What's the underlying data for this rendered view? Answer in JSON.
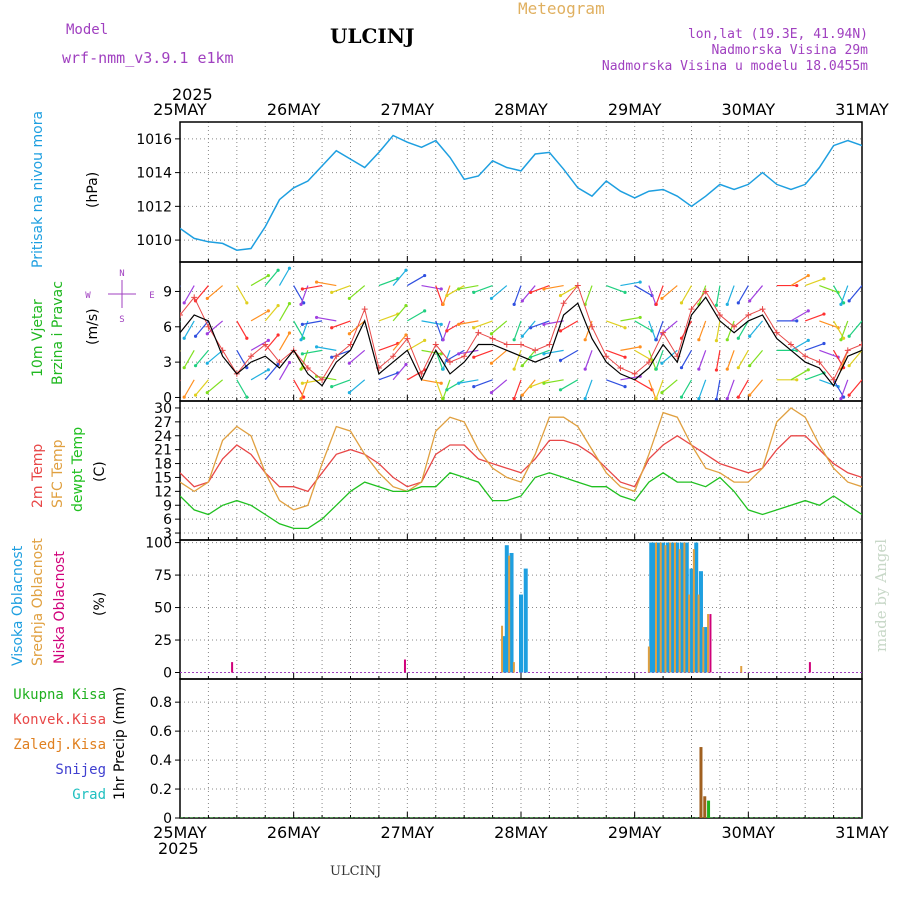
{
  "header": {
    "model_label": "Model",
    "model_name": "wrf-nmm_v3.9.1  e1km",
    "station": "ULCINJ",
    "meteogram": "Meteogram",
    "lonlat": "lon,lat (19.3E, 41.94N)",
    "elevation": "Nadmorska Visina 29m",
    "model_elevation": "Nadmorska Visina u modelu 18.0455m"
  },
  "footer": {
    "station": "ULCINJ",
    "credit": "made by Angel"
  },
  "time_axis": {
    "year": "2025",
    "labels": [
      "25MAY",
      "26MAY",
      "27MAY",
      "28MAY",
      "29MAY",
      "30MAY",
      "31MAY"
    ]
  },
  "colors": {
    "pressure": "#1e9fe0",
    "wind_label": "#20b820",
    "t2m": "#e84848",
    "tsfc": "#e0a040",
    "dewpt": "#20c020",
    "cloud_high": "#1e9fe0",
    "cloud_mid": "#e0a040",
    "cloud_low": "#d0007a",
    "precip_total": "#20b020",
    "precip_conv": "#e84848",
    "precip_strat": "#e08020",
    "snow": "#4040d0",
    "graupel": "#20c0c0",
    "direction_rose": "#a040c0"
  },
  "chart_data": [
    {
      "type": "line",
      "panel": "pressure",
      "ylabel_series": "Pritisak na nivou mora",
      "ylabel_unit": "(hPa)",
      "ylim": [
        1008.7,
        1017.0
      ],
      "yticks": [
        "1010",
        "1012",
        "1014",
        "1016"
      ],
      "x_hours": [
        0,
        3,
        6,
        9,
        12,
        15,
        18,
        21,
        24,
        27,
        30,
        33,
        36,
        39,
        42,
        45,
        48,
        51,
        54,
        57,
        60,
        63,
        66,
        69,
        72,
        75,
        78,
        81,
        84,
        87,
        90,
        93,
        96,
        99,
        102,
        105,
        108,
        111,
        114,
        117,
        120,
        123,
        126,
        129,
        132,
        135,
        138,
        141,
        144
      ],
      "values": [
        1010.7,
        1010.1,
        1009.9,
        1009.8,
        1009.4,
        1009.5,
        1010.8,
        1012.4,
        1013.1,
        1013.5,
        1014.4,
        1015.3,
        1014.8,
        1014.3,
        1015.2,
        1016.2,
        1015.8,
        1015.5,
        1015.9,
        1014.9,
        1013.6,
        1013.8,
        1014.7,
        1014.3,
        1014.1,
        1015.1,
        1015.2,
        1014.2,
        1013.1,
        1012.6,
        1013.5,
        1012.9,
        1012.5,
        1012.9,
        1013.0,
        1012.6,
        1012.0,
        1012.6,
        1013.3,
        1013.0,
        1013.3,
        1014.0,
        1013.3,
        1013.0,
        1013.3,
        1014.3,
        1015.6,
        1015.9,
        1015.6
      ],
      "grid": true
    },
    {
      "type": "line",
      "panel": "wind",
      "ylabel_series": "10m Vjetar / Brzina i Pravac",
      "ylabel_unit": "(m/s)",
      "ylim": [
        -0.3,
        11.5
      ],
      "yticks": [
        "0",
        "3",
        "6",
        "9"
      ],
      "compass": [
        "N",
        "E",
        "S",
        "W"
      ],
      "x_hours": [
        0,
        3,
        6,
        9,
        12,
        15,
        18,
        21,
        24,
        27,
        30,
        33,
        36,
        39,
        42,
        45,
        48,
        51,
        54,
        57,
        60,
        63,
        66,
        69,
        72,
        75,
        78,
        81,
        84,
        87,
        90,
        93,
        96,
        99,
        102,
        105,
        108,
        111,
        114,
        117,
        120,
        123,
        126,
        129,
        132,
        135,
        138,
        141,
        144
      ],
      "values": [
        5.5,
        7.0,
        6.5,
        3.5,
        2.0,
        3.0,
        3.5,
        2.5,
        4.0,
        2.0,
        1.0,
        3.0,
        4.0,
        6.5,
        2.0,
        3.0,
        4.0,
        1.5,
        4.0,
        2.0,
        3.0,
        4.5,
        4.5,
        4.0,
        3.5,
        3.0,
        3.5,
        7.0,
        8.0,
        5.0,
        3.0,
        2.0,
        1.5,
        2.5,
        4.5,
        3.0,
        7.0,
        8.5,
        6.5,
        5.5,
        6.5,
        7.0,
        5.0,
        4.0,
        3.0,
        2.5,
        1.0,
        3.5,
        4.0
      ],
      "gust": [
        7.0,
        8.5,
        6.0,
        4.0,
        2.0,
        3.5,
        4.5,
        3.0,
        4.0,
        2.5,
        1.5,
        3.5,
        4.5,
        7.5,
        2.5,
        3.5,
        5.0,
        2.0,
        4.5,
        3.0,
        3.5,
        5.5,
        5.0,
        4.5,
        4.5,
        4.0,
        4.5,
        8.0,
        9.5,
        6.0,
        3.5,
        2.5,
        2.0,
        3.0,
        5.5,
        3.5,
        7.5,
        9.0,
        7.0,
        6.0,
        7.0,
        7.5,
        5.5,
        4.5,
        3.5,
        3.0,
        1.5,
        4.0,
        4.5
      ],
      "wind_dir_deg": [
        200,
        210,
        220,
        230,
        150,
        60,
        40,
        30,
        150,
        200,
        260,
        280,
        250,
        230,
        70,
        40,
        60,
        100,
        160,
        200,
        240,
        260,
        250,
        230,
        200,
        220,
        250,
        260,
        240,
        200,
        110,
        80,
        120,
        160,
        200,
        230,
        210,
        200,
        190,
        200,
        210,
        220,
        90,
        60,
        70,
        110,
        150,
        200,
        220
      ],
      "grid": true
    },
    {
      "type": "line",
      "panel": "temperature",
      "ylabel_series": [
        "2m Temp",
        "SFC Temp",
        "dewpt Temp"
      ],
      "ylabel_unit": "(C)",
      "ylim": [
        1.5,
        31.5
      ],
      "yticks": [
        "3",
        "6",
        "9",
        "12",
        "15",
        "18",
        "21",
        "24",
        "27",
        "30"
      ],
      "x_hours": [
        0,
        3,
        6,
        9,
        12,
        15,
        18,
        21,
        24,
        27,
        30,
        33,
        36,
        39,
        42,
        45,
        48,
        51,
        54,
        57,
        60,
        63,
        66,
        69,
        72,
        75,
        78,
        81,
        84,
        87,
        90,
        93,
        96,
        99,
        102,
        105,
        108,
        111,
        114,
        117,
        120,
        123,
        126,
        129,
        132,
        135,
        138,
        141,
        144
      ],
      "series": [
        {
          "name": "2m Temp",
          "values": [
            16,
            13,
            14,
            19,
            22,
            20,
            16,
            13,
            13,
            12,
            16,
            20,
            21,
            20,
            18,
            15,
            13,
            14,
            20,
            22,
            22,
            19,
            18,
            17,
            16,
            19,
            23,
            23,
            22,
            20,
            17,
            14,
            13,
            19,
            22,
            24,
            22,
            20,
            18,
            17,
            16,
            17,
            21,
            24,
            24,
            21,
            18,
            16,
            15
          ]
        },
        {
          "name": "SFC Temp",
          "values": [
            14,
            12,
            14,
            23,
            26,
            24,
            16,
            10,
            8,
            9,
            18,
            26,
            25,
            20,
            16,
            13,
            12,
            14,
            25,
            28,
            27,
            21,
            17,
            15,
            14,
            20,
            28,
            28,
            26,
            21,
            16,
            13,
            12,
            20,
            29,
            28,
            22,
            17,
            16,
            14,
            14,
            17,
            27,
            30,
            28,
            22,
            17,
            14,
            13
          ]
        },
        {
          "name": "dewpt Temp",
          "values": [
            11,
            8,
            7,
            9,
            10,
            9,
            7,
            5,
            4,
            4,
            6,
            9,
            12,
            14,
            13,
            12,
            12,
            13,
            13,
            16,
            15,
            14,
            10,
            10,
            11,
            15,
            16,
            15,
            14,
            13,
            13,
            11,
            10,
            14,
            16,
            14,
            14,
            13,
            15,
            12,
            8,
            7,
            8,
            9,
            10,
            9,
            11,
            9,
            7
          ]
        }
      ],
      "grid": true
    },
    {
      "type": "bar",
      "panel": "clouds",
      "ylabel_series": [
        "Visoka Oblacnost",
        "Srednja Oblacnost",
        "Niska Oblacnost"
      ],
      "ylabel_unit": "(%)",
      "ylim": [
        -5,
        102
      ],
      "yticks": [
        "0",
        "25",
        "50",
        "75",
        "100"
      ],
      "series": [
        {
          "name": "Visoka Oblacnost",
          "x_hours": [
            68.5,
            69,
            70,
            71,
            72,
            73,
            99.5,
            100,
            101,
            102,
            103,
            104,
            105,
            106,
            107,
            108,
            109,
            110,
            111
          ],
          "values": [
            28,
            98,
            92,
            0,
            60,
            80,
            100,
            100,
            100,
            100,
            100,
            100,
            100,
            100,
            100,
            80,
            100,
            78,
            35
          ]
        },
        {
          "name": "Srednja Oblacnost",
          "x_hours": [
            68,
            69.5,
            70.5,
            99,
            100.5,
            101.5,
            102.5,
            103.5,
            104.5,
            105.5,
            106.5,
            107.5,
            108.5,
            109.5,
            110.5,
            111.5,
            118.5
          ],
          "values": [
            36,
            90,
            8,
            20,
            100,
            100,
            98,
            100,
            100,
            95,
            100,
            60,
            95,
            60,
            35,
            45,
            5
          ]
        },
        {
          "name": "Niska Oblacnost",
          "x_hours": [
            11,
            47.5,
            112,
            133
          ],
          "values": [
            8,
            10,
            45,
            8
          ]
        }
      ],
      "grid": true
    },
    {
      "type": "bar",
      "panel": "precipitation",
      "ylabel_series": [
        "Ukupna Kisa",
        "Konvek.Kisa",
        "Zaledj.Kisa",
        "Snijeg",
        "Grad"
      ],
      "ylabel_unit": "1hr Precip (mm)",
      "ylim": [
        0,
        0.96
      ],
      "yticks": [
        "0",
        "0.2",
        "0.4",
        "0.6",
        "0.8"
      ],
      "series": [
        {
          "name": "Zaledj.Kisa",
          "x_hours": [
            110,
            110.8
          ],
          "values": [
            0.49,
            0.15
          ]
        },
        {
          "name": "Ukupna Kisa",
          "x_hours": [
            111.6
          ],
          "values": [
            0.12
          ]
        }
      ],
      "grid": true
    }
  ]
}
